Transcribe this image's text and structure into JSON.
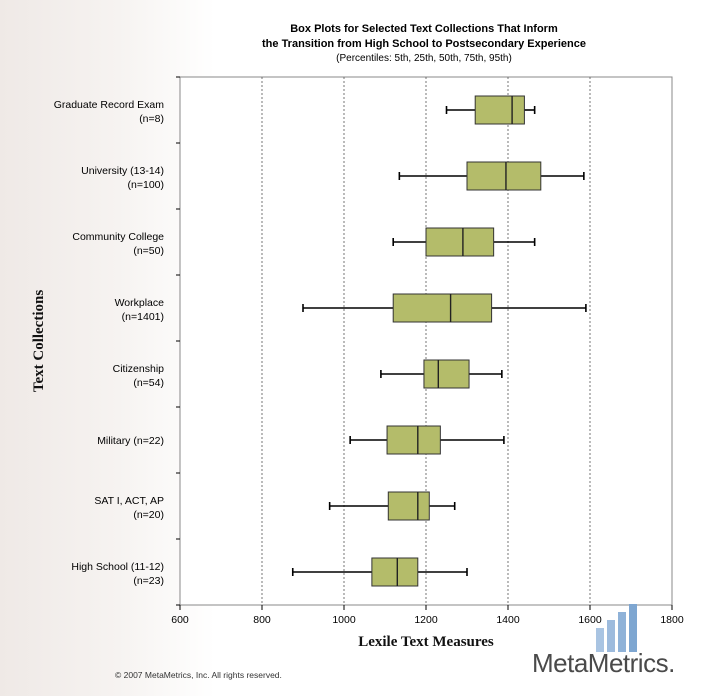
{
  "chart_data": {
    "type": "boxplot",
    "title_line1": "Box Plots for Selected Text Collections That Inform",
    "title_line2": "the Transition from High School to Postsecondary Experience",
    "subtitle": "(Percentiles:  5th, 25th, 50th, 75th, 95th)",
    "xlabel": "Lexile Text Measures",
    "ylabel": "Text Collections",
    "xlim": [
      600,
      1800
    ],
    "xticks": [
      "600",
      "800",
      "1000",
      "1200",
      "1400",
      "1600",
      "1800"
    ],
    "grid": "vertical dotted at 800, 1000, 1200, 1400, 1600",
    "box_color": "#b4bc6a",
    "categories": [
      {
        "line1": "Graduate Record Exam",
        "line2": "(n=8)",
        "p5": 1250,
        "p25": 1320,
        "p50": 1410,
        "p75": 1440,
        "p95": 1465
      },
      {
        "line1": "University (13-14)",
        "line2": "(n=100)",
        "p5": 1135,
        "p25": 1300,
        "p50": 1395,
        "p75": 1480,
        "p95": 1585
      },
      {
        "line1": "Community College",
        "line2": "(n=50)",
        "p5": 1120,
        "p25": 1200,
        "p50": 1290,
        "p75": 1365,
        "p95": 1465
      },
      {
        "line1": "Workplace",
        "line2": "(n=1401)",
        "p5": 900,
        "p25": 1120,
        "p50": 1260,
        "p75": 1360,
        "p95": 1590
      },
      {
        "line1": "Citizenship",
        "line2": "(n=54)",
        "p5": 1090,
        "p25": 1195,
        "p50": 1230,
        "p75": 1305,
        "p95": 1385
      },
      {
        "line1": "Military (n=22)",
        "line2": "",
        "p5": 1015,
        "p25": 1105,
        "p50": 1180,
        "p75": 1235,
        "p95": 1390
      },
      {
        "line1": "SAT I, ACT, AP",
        "line2": "(n=20)",
        "p5": 965,
        "p25": 1108,
        "p50": 1180,
        "p75": 1208,
        "p95": 1270
      },
      {
        "line1": "High School (11-12)",
        "line2": "(n=23)",
        "p5": 875,
        "p25": 1068,
        "p50": 1130,
        "p75": 1180,
        "p95": 1300
      }
    ]
  },
  "footer": {
    "copyright": "© 2007 MetaMetrics, Inc. All rights reserved.",
    "brand": "MetaMetrics."
  },
  "colors": {
    "logo": "#8fb2d8"
  }
}
